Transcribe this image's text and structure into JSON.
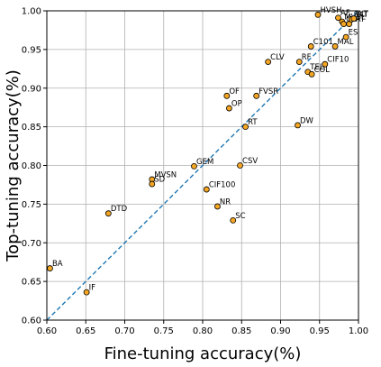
{
  "chart_data": {
    "type": "scatter",
    "xlabel": "Fine-tuning accuracy(%)",
    "ylabel": "Top-tuning accuracy(%)",
    "xlim": [
      0.6,
      1.0
    ],
    "ylim": [
      0.6,
      1.0
    ],
    "xticks": [
      "0.60",
      "0.65",
      "0.70",
      "0.75",
      "0.80",
      "0.85",
      "0.90",
      "0.95",
      "1.00"
    ],
    "yticks": [
      "0.60",
      "0.65",
      "0.70",
      "0.75",
      "0.80",
      "0.85",
      "0.90",
      "0.95",
      "1.00"
    ],
    "grid": true,
    "reference_line": {
      "from": [
        0.6,
        0.6
      ],
      "to": [
        1.0,
        1.0
      ],
      "style": "dashed",
      "color": "#1f77b4"
    },
    "marker_color": "#f5a623",
    "marker_edge_color": "#000000",
    "points": [
      {
        "label": "BA",
        "x": 0.604,
        "y": 0.667
      },
      {
        "label": "IF",
        "x": 0.651,
        "y": 0.636
      },
      {
        "label": "DTD",
        "x": 0.679,
        "y": 0.738
      },
      {
        "label": "MVSN",
        "x": 0.735,
        "y": 0.782
      },
      {
        "label": "SD",
        "x": 0.735,
        "y": 0.776
      },
      {
        "label": "GEM",
        "x": 0.789,
        "y": 0.799
      },
      {
        "label": "CIF100",
        "x": 0.805,
        "y": 0.769
      },
      {
        "label": "NR",
        "x": 0.819,
        "y": 0.747
      },
      {
        "label": "SC",
        "x": 0.839,
        "y": 0.729
      },
      {
        "label": "CSV",
        "x": 0.848,
        "y": 0.8
      },
      {
        "label": "RT",
        "x": 0.855,
        "y": 0.85
      },
      {
        "label": "OF",
        "x": 0.831,
        "y": 0.89
      },
      {
        "label": "OP",
        "x": 0.834,
        "y": 0.874
      },
      {
        "label": "FVSR",
        "x": 0.869,
        "y": 0.89
      },
      {
        "label": "CLV",
        "x": 0.884,
        "y": 0.934
      },
      {
        "label": "DW",
        "x": 0.922,
        "y": 0.852
      },
      {
        "label": "RF",
        "x": 0.924,
        "y": 0.934
      },
      {
        "label": "TEL",
        "x": 0.935,
        "y": 0.921
      },
      {
        "label": "COL",
        "x": 0.94,
        "y": 0.918
      },
      {
        "label": "C101",
        "x": 0.939,
        "y": 0.954
      },
      {
        "label": "CIF10",
        "x": 0.957,
        "y": 0.931
      },
      {
        "label": "MAL",
        "x": 0.97,
        "y": 0.954
      },
      {
        "label": "ES",
        "x": 0.984,
        "y": 0.966
      },
      {
        "label": "HVSH",
        "x": 0.948,
        "y": 0.995
      },
      {
        "label": "AF",
        "x": 0.974,
        "y": 0.991
      },
      {
        "label": "MVSL",
        "x": 0.979,
        "y": 0.986
      },
      {
        "label": "CH",
        "x": 0.981,
        "y": 0.983
      },
      {
        "label": "PAT",
        "x": 0.988,
        "y": 0.983
      },
      {
        "label": "SAT",
        "x": 0.991,
        "y": 0.989
      },
      {
        "label": "WT",
        "x": 0.994,
        "y": 0.99
      }
    ]
  }
}
